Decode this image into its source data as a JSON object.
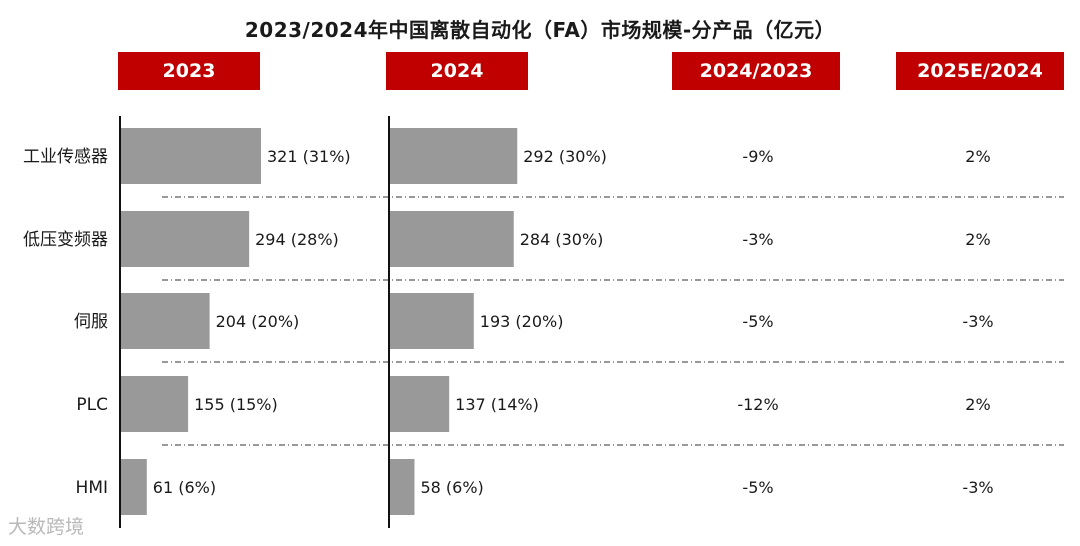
{
  "chart_data": {
    "type": "bar",
    "title": "2023/2024年中国离散自动化（FA）市场规模-分产品（亿元）",
    "categories": [
      "工业传感器",
      "低压变频器",
      "伺服",
      "PLC",
      "HMI"
    ],
    "series": [
      {
        "name": "2023",
        "values": [
          321,
          294,
          204,
          155,
          61
        ],
        "labels": [
          "321 (31%)",
          "294 (28%)",
          "204 (20%)",
          "155 (15%)",
          "61 (6%)"
        ]
      },
      {
        "name": "2024",
        "values": [
          292,
          284,
          193,
          137,
          58
        ],
        "labels": [
          "292 (30%)",
          "284 (30%)",
          "193 (20%)",
          "137 (14%)",
          "58 (6%)"
        ]
      }
    ],
    "comparisons": [
      {
        "name": "2024/2023",
        "values": [
          "-9%",
          "-3%",
          "-5%",
          "-12%",
          "-5%"
        ]
      },
      {
        "name": "2025E/2024",
        "values": [
          "2%",
          "2%",
          "-3%",
          "2%",
          "-3%"
        ]
      }
    ],
    "colors": {
      "bar": "#999999",
      "header": "#c00000"
    }
  },
  "watermark": "大数跨境"
}
